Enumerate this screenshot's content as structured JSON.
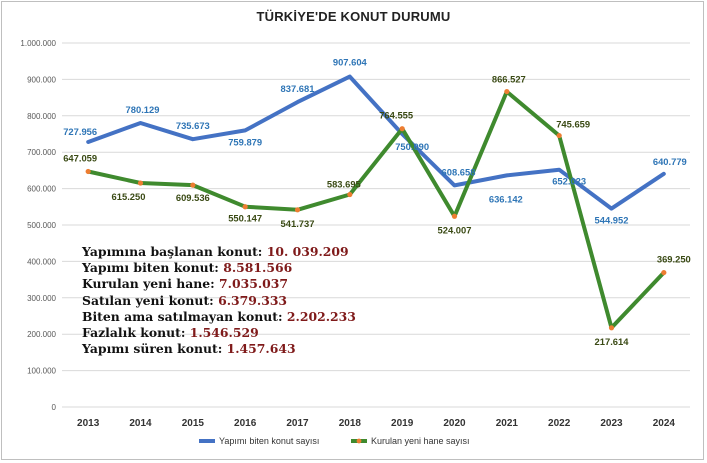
{
  "chart_data": {
    "type": "line",
    "title": "TÜRKİYE'DE KONUT DURUMU",
    "xlabel": "",
    "ylabel": "",
    "categories": [
      "2013",
      "2014",
      "2015",
      "2016",
      "2017",
      "2018",
      "2019",
      "2020",
      "2021",
      "2022",
      "2023",
      "2024"
    ],
    "ylim": [
      0,
      1000000
    ],
    "yticks": [
      0,
      100000,
      200000,
      300000,
      400000,
      500000,
      600000,
      700000,
      800000,
      900000,
      1000000
    ],
    "ytick_labels": [
      "0",
      "100.000",
      "200.000",
      "300.000",
      "400.000",
      "500.000",
      "600.000",
      "700.000",
      "800.000",
      "900.000",
      "1.000.000"
    ],
    "grid": true,
    "legend_position": "bottom",
    "series": [
      {
        "name": "Yapımı biten konut sayısı",
        "color": "#4472c4",
        "values": [
          727956,
          780129,
          735673,
          759879,
          837681,
          907604,
          750090,
          608658,
          636142,
          652023,
          544952,
          640779
        ],
        "labels": [
          "727.956",
          "780.129",
          "735.673",
          "759.879",
          "837.681",
          "907.604",
          "750.090",
          "608.658",
          "636.142",
          "652.023",
          "544.952",
          "640.779"
        ],
        "label_color": "#2e75b6"
      },
      {
        "name": "Kurulan yeni hane sayısı",
        "color": "#3f8a2e",
        "marker_color": "#ed7d31",
        "values": [
          647059,
          615250,
          609536,
          550147,
          541737,
          583695,
          764555,
          524007,
          866527,
          745659,
          217614,
          369250
        ],
        "labels": [
          "647.059",
          "615.250",
          "609.536",
          "550.147",
          "541.737",
          "583.695",
          "764.555",
          "524.007",
          "866.527",
          "745.659",
          "217.614",
          "369.250"
        ],
        "label_color": "#3a4a14"
      }
    ],
    "annotations": [
      {
        "label": "Yapımına başlanan konut:",
        "value": "10. 039.209"
      },
      {
        "label": "Yapımı biten konut:",
        "value": "8.581.566"
      },
      {
        "label": "Kurulan yeni hane:",
        "value": "7.035.037"
      },
      {
        "label": "Satılan yeni konut:",
        "value": "6.379.333"
      },
      {
        "label": "Biten ama satılmayan konut:",
        "value": "2.202.233"
      },
      {
        "label": "Fazlalık konut:",
        "value": "1.546.529"
      },
      {
        "label": "Yapımı süren konut:",
        "value": "1.457.643"
      }
    ]
  }
}
